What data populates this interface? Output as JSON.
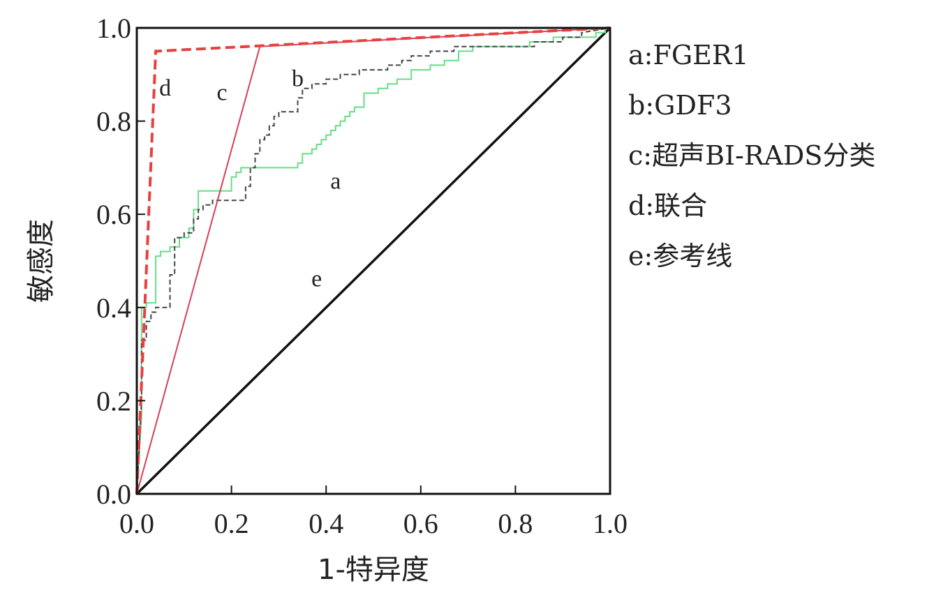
{
  "chart_data": {
    "type": "line",
    "xlabel": "1-特异度",
    "ylabel": "敏感度",
    "xlim": [
      0.0,
      1.0
    ],
    "ylim": [
      0.0,
      1.0
    ],
    "xticks": [
      "0.0",
      "0.2",
      "0.4",
      "0.6",
      "0.8",
      "1.0"
    ],
    "yticks": [
      "0.0",
      "0.2",
      "0.4",
      "0.6",
      "0.8",
      "1.0"
    ],
    "grid": false,
    "legend_position": "right",
    "series": [
      {
        "key": "a",
        "name": "FGER1",
        "legend": "a:FGER1",
        "color": "#66dd88",
        "style": "solid",
        "x": [
          0,
          0.01,
          0.01,
          0.02,
          0.02,
          0.04,
          0.04,
          0.05,
          0.05,
          0.07,
          0.07,
          0.09,
          0.09,
          0.11,
          0.11,
          0.12,
          0.12,
          0.13,
          0.13,
          0.2,
          0.2,
          0.21,
          0.21,
          0.22,
          0.22,
          0.34,
          0.34,
          0.35,
          0.35,
          0.37,
          0.37,
          0.38,
          0.38,
          0.39,
          0.39,
          0.4,
          0.4,
          0.41,
          0.41,
          0.42,
          0.42,
          0.43,
          0.43,
          0.44,
          0.44,
          0.45,
          0.45,
          0.46,
          0.46,
          0.48,
          0.48,
          0.51,
          0.51,
          0.53,
          0.53,
          0.55,
          0.55,
          0.58,
          0.58,
          0.62,
          0.62,
          0.65,
          0.65,
          0.68,
          0.68,
          0.71,
          0.71,
          0.83,
          0.83,
          0.88,
          0.88,
          0.97,
          0.97,
          0.99,
          0.99,
          1.0
        ],
        "y": [
          0,
          0.17,
          0.4,
          0.4,
          0.41,
          0.41,
          0.51,
          0.51,
          0.52,
          0.52,
          0.53,
          0.53,
          0.55,
          0.55,
          0.57,
          0.57,
          0.61,
          0.61,
          0.65,
          0.65,
          0.68,
          0.68,
          0.69,
          0.69,
          0.7,
          0.7,
          0.71,
          0.71,
          0.73,
          0.73,
          0.74,
          0.74,
          0.75,
          0.75,
          0.76,
          0.76,
          0.77,
          0.77,
          0.78,
          0.78,
          0.79,
          0.79,
          0.8,
          0.8,
          0.81,
          0.81,
          0.82,
          0.82,
          0.83,
          0.83,
          0.86,
          0.86,
          0.87,
          0.87,
          0.88,
          0.88,
          0.89,
          0.89,
          0.91,
          0.91,
          0.92,
          0.92,
          0.93,
          0.93,
          0.95,
          0.95,
          0.96,
          0.96,
          0.97,
          0.97,
          0.98,
          0.98,
          0.99,
          0.99,
          1.0,
          1.0
        ]
      },
      {
        "key": "b",
        "name": "GDF3",
        "legend": "b:GDF3",
        "color": "#444444",
        "style": "dashed",
        "x": [
          0,
          0.01,
          0.01,
          0.02,
          0.02,
          0.03,
          0.03,
          0.04,
          0.04,
          0.07,
          0.07,
          0.08,
          0.08,
          0.1,
          0.1,
          0.12,
          0.12,
          0.13,
          0.13,
          0.14,
          0.14,
          0.16,
          0.16,
          0.23,
          0.23,
          0.24,
          0.24,
          0.25,
          0.25,
          0.26,
          0.26,
          0.27,
          0.27,
          0.28,
          0.28,
          0.29,
          0.29,
          0.3,
          0.3,
          0.34,
          0.34,
          0.35,
          0.35,
          0.37,
          0.37,
          0.4,
          0.4,
          0.43,
          0.43,
          0.47,
          0.47,
          0.53,
          0.53,
          0.56,
          0.56,
          0.58,
          0.58,
          0.62,
          0.62,
          0.67,
          0.67,
          0.84,
          0.84,
          0.9,
          0.9,
          0.94,
          0.94,
          1.0
        ],
        "y": [
          0,
          0.2,
          0.33,
          0.33,
          0.37,
          0.37,
          0.39,
          0.39,
          0.4,
          0.4,
          0.47,
          0.47,
          0.55,
          0.55,
          0.56,
          0.56,
          0.59,
          0.59,
          0.61,
          0.61,
          0.62,
          0.62,
          0.63,
          0.63,
          0.66,
          0.66,
          0.7,
          0.7,
          0.73,
          0.73,
          0.76,
          0.76,
          0.77,
          0.77,
          0.79,
          0.79,
          0.81,
          0.81,
          0.82,
          0.82,
          0.85,
          0.85,
          0.87,
          0.87,
          0.88,
          0.88,
          0.89,
          0.89,
          0.9,
          0.9,
          0.91,
          0.91,
          0.92,
          0.92,
          0.93,
          0.93,
          0.94,
          0.94,
          0.95,
          0.95,
          0.96,
          0.96,
          0.97,
          0.97,
          0.98,
          0.98,
          0.99,
          1.0
        ]
      },
      {
        "key": "c",
        "name": "超声BI-RADS分类",
        "legend": "c:超声BI-RADS分类",
        "color": "#d44058",
        "style": "solid",
        "x": [
          0,
          0.26,
          1.0
        ],
        "y": [
          0,
          0.96,
          1.0
        ]
      },
      {
        "key": "d",
        "name": "联合",
        "legend": "d:联合",
        "color": "#e84040",
        "style": "bold-dashed",
        "x": [
          0,
          0.04,
          1.0
        ],
        "y": [
          0,
          0.95,
          1.0
        ]
      },
      {
        "key": "e",
        "name": "参考线",
        "legend": "e:参考线",
        "color": "#111111",
        "style": "solid",
        "x": [
          0,
          1.0
        ],
        "y": [
          0,
          1.0
        ]
      }
    ],
    "annotations": [
      {
        "text": "d",
        "x": 0.06,
        "y": 0.87
      },
      {
        "text": "c",
        "x": 0.18,
        "y": 0.86
      },
      {
        "text": "b",
        "x": 0.34,
        "y": 0.89
      },
      {
        "text": "a",
        "x": 0.42,
        "y": 0.67
      },
      {
        "text": "e",
        "x": 0.38,
        "y": 0.46
      }
    ]
  }
}
